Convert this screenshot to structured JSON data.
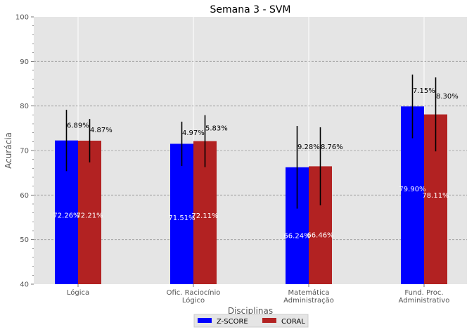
{
  "chart_data": {
    "type": "bar",
    "title": "Semana 3 - SVM",
    "xlabel": "Disciplinas",
    "ylabel": "Acurácia",
    "ylim": [
      40,
      100
    ],
    "yticks": [
      40,
      50,
      60,
      70,
      80,
      90,
      100
    ],
    "grid": true,
    "legend_position": "bottom-center",
    "categories": [
      [
        "Lógica"
      ],
      [
        "Ofic. Raciocínio",
        "Lógico"
      ],
      [
        "Matemática",
        "Administração"
      ],
      [
        "Fund. Proc.",
        "Administrativo"
      ]
    ],
    "series": [
      {
        "name": "Z-SCORE",
        "color": "#0000ff",
        "values": [
          72.26,
          71.51,
          66.24,
          79.9
        ],
        "errors": [
          6.89,
          4.97,
          9.28,
          7.15
        ],
        "value_labels": [
          "72.26%",
          "71.51%",
          "66.24%",
          "79.90%"
        ],
        "error_labels": [
          "6.89%",
          "4.97%",
          "9.28%",
          "7.15%"
        ]
      },
      {
        "name": "CORAL",
        "color": "#b22222",
        "values": [
          72.21,
          72.11,
          66.46,
          78.11
        ],
        "errors": [
          4.87,
          5.83,
          8.76,
          8.3
        ],
        "value_labels": [
          "72.21%",
          "72.11%",
          "66.46%",
          "78.11%"
        ],
        "error_labels": [
          "4.87%",
          "5.83%",
          "8.76%",
          "8.30%"
        ]
      }
    ]
  }
}
